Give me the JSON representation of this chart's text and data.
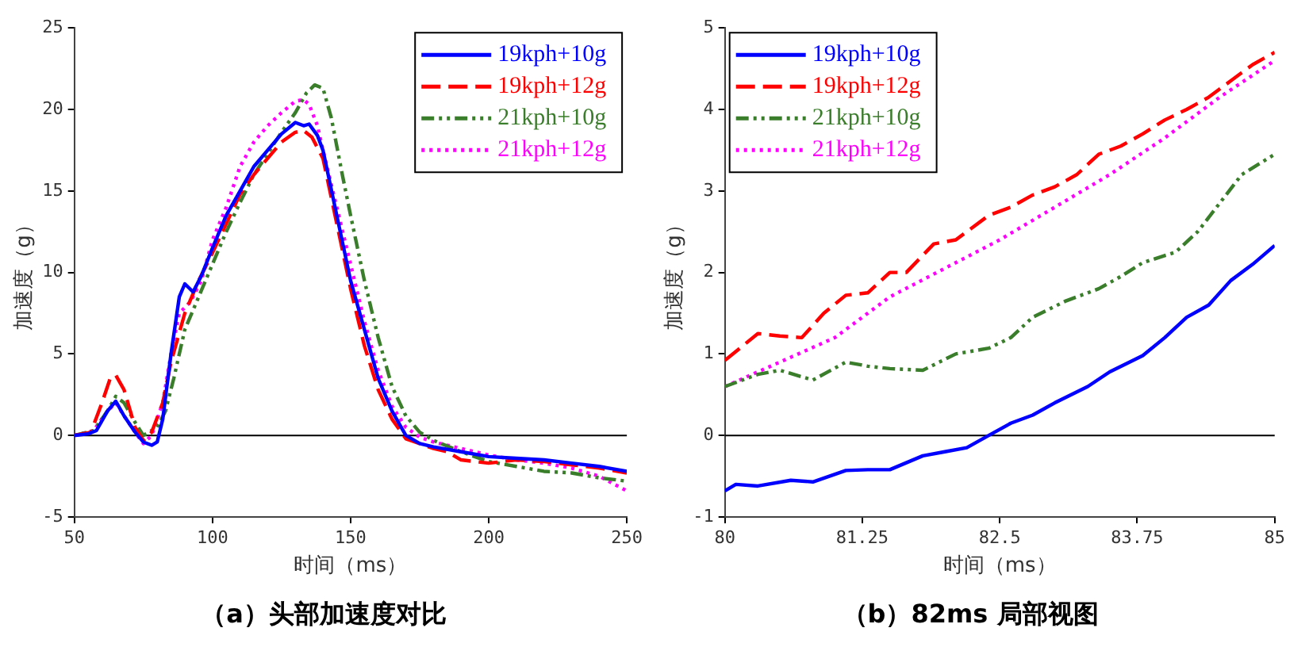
{
  "chart_data": [
    {
      "type": "line",
      "title": "（a）头部加速度对比",
      "xlabel": "时间（ms）",
      "ylabel": "加速度（g）",
      "xlim": [
        50,
        250
      ],
      "xticks": [
        50,
        100,
        150,
        200,
        250
      ],
      "ylim": [
        -5,
        25
      ],
      "yticks": [
        -5,
        0,
        5,
        10,
        15,
        20,
        25
      ],
      "grid": false,
      "legend": "top right",
      "marker": "none",
      "ref_lines": [
        {
          "axis": "y",
          "value": 0,
          "color": "#000000"
        }
      ],
      "series": [
        {
          "name": "19kph+10g",
          "color": "#0000ff",
          "line_style": "solid",
          "x": [
            50,
            55,
            58,
            62,
            65,
            68,
            72,
            75,
            78,
            80,
            82,
            85,
            88,
            90,
            93,
            96,
            100,
            105,
            110,
            115,
            120,
            125,
            130,
            133,
            135,
            138,
            140,
            145,
            150,
            155,
            160,
            165,
            170,
            175,
            180,
            190,
            200,
            210,
            220,
            230,
            240,
            250
          ],
          "values": [
            0,
            0.1,
            0.3,
            1.5,
            2.1,
            1.2,
            0.2,
            -0.4,
            -0.6,
            -0.4,
            1,
            5,
            8.5,
            9.3,
            8.8,
            9.8,
            11.5,
            13.5,
            15,
            16.5,
            17.5,
            18.5,
            19.2,
            19,
            19.1,
            18.4,
            17.5,
            13.5,
            9.5,
            6.5,
            3.5,
            1.5,
            0,
            -0.5,
            -0.7,
            -1,
            -1.3,
            -1.4,
            -1.5,
            -1.7,
            -1.9,
            -2.2
          ]
        },
        {
          "name": "19kph+12g",
          "color": "#ff0000",
          "line_style": "dashed",
          "x": [
            50,
            56,
            60,
            63,
            65,
            68,
            72,
            75,
            78,
            82,
            85,
            90,
            95,
            100,
            105,
            110,
            115,
            120,
            125,
            130,
            133,
            136,
            140,
            145,
            150,
            155,
            160,
            165,
            170,
            175,
            180,
            185,
            190,
            200,
            210,
            220,
            230,
            240,
            250
          ],
          "values": [
            0,
            0.2,
            2,
            3.5,
            3.7,
            2.8,
            0.5,
            -0.3,
            0.2,
            2,
            4.5,
            7.5,
            9.5,
            11.2,
            13,
            14.8,
            16,
            17,
            18,
            18.6,
            18.7,
            18.3,
            17,
            13,
            9,
            5.5,
            2.8,
            1,
            -0.2,
            -0.5,
            -0.8,
            -1,
            -1.5,
            -1.7,
            -1.5,
            -1.6,
            -1.8,
            -2,
            -2.3
          ]
        },
        {
          "name": "21kph+10g",
          "color": "#3a7d2a",
          "line_style": "dashdot",
          "x": [
            50,
            57,
            62,
            65,
            68,
            72,
            75,
            80,
            83,
            86,
            90,
            95,
            100,
            105,
            110,
            115,
            120,
            125,
            130,
            134,
            137,
            140,
            143,
            147,
            150,
            155,
            160,
            165,
            170,
            175,
            180,
            190,
            200,
            210,
            220,
            230,
            240,
            250
          ],
          "values": [
            0,
            0.3,
            1.5,
            2.4,
            2,
            0.8,
            0,
            0.5,
            1.5,
            3.5,
            6.5,
            8.5,
            10.5,
            12.5,
            14.3,
            16,
            17.3,
            18.6,
            19.8,
            21,
            21.5,
            21.3,
            19.5,
            16,
            13.5,
            9.5,
            6,
            3,
            1.2,
            0.2,
            -0.3,
            -1,
            -1.6,
            -1.9,
            -2.2,
            -2.3,
            -2.6,
            -2.8
          ]
        },
        {
          "name": "21kph+12g",
          "color": "#ff00ff",
          "line_style": "dotted",
          "x": [
            50,
            57,
            62,
            65,
            68,
            72,
            75,
            78,
            82,
            85,
            88,
            92,
            96,
            100,
            105,
            110,
            115,
            120,
            125,
            130,
            133,
            135,
            138,
            140,
            145,
            150,
            155,
            160,
            165,
            170,
            175,
            180,
            190,
            200,
            210,
            220,
            230,
            240,
            250
          ],
          "values": [
            0,
            0.3,
            1.5,
            2,
            1.2,
            0.2,
            -0.5,
            0,
            2,
            5,
            7.5,
            8.2,
            9.5,
            12,
            14,
            16.5,
            18,
            19,
            19.8,
            20.5,
            20.6,
            20.3,
            19,
            17.5,
            14,
            10.5,
            7,
            4,
            1.8,
            0.5,
            -0.1,
            -0.4,
            -0.8,
            -1.2,
            -1.5,
            -1.7,
            -2,
            -2.5,
            -3.4
          ]
        }
      ]
    },
    {
      "type": "line",
      "title": "（b）82ms 局部视图",
      "xlabel": "时间（ms）",
      "ylabel": "加速度（g）",
      "xlim": [
        80,
        85
      ],
      "xticks": [
        80,
        81.25,
        82.5,
        83.75,
        85
      ],
      "ylim": [
        -1,
        5
      ],
      "yticks": [
        -1,
        0,
        1,
        2,
        3,
        4,
        5
      ],
      "grid": false,
      "legend": "top left",
      "marker": "none",
      "ref_lines": [
        {
          "axis": "y",
          "value": 0,
          "color": "#000000"
        }
      ],
      "series": [
        {
          "name": "19kph+10g",
          "color": "#0000ff",
          "line_style": "solid",
          "x": [
            80,
            80.1,
            80.3,
            80.6,
            80.8,
            81.1,
            81.3,
            81.5,
            81.8,
            82,
            82.2,
            82.4,
            82.6,
            82.8,
            83,
            83.3,
            83.5,
            83.8,
            84,
            84.2,
            84.4,
            84.6,
            84.8,
            85
          ],
          "values": [
            -0.68,
            -0.6,
            -0.62,
            -0.55,
            -0.57,
            -0.43,
            -0.42,
            -0.42,
            -0.25,
            -0.2,
            -0.15,
            0,
            0.15,
            0.25,
            0.4,
            0.6,
            0.78,
            0.98,
            1.2,
            1.45,
            1.6,
            1.9,
            2.1,
            2.33
          ]
        },
        {
          "name": "19kph+12g",
          "color": "#ff0000",
          "line_style": "dashed",
          "x": [
            80,
            80.3,
            80.5,
            80.7,
            80.9,
            81.1,
            81.3,
            81.5,
            81.65,
            81.9,
            82.1,
            82.4,
            82.6,
            82.8,
            83,
            83.2,
            83.4,
            83.6,
            83.8,
            84,
            84.2,
            84.4,
            84.6,
            84.8,
            85
          ],
          "values": [
            0.92,
            1.25,
            1.22,
            1.2,
            1.5,
            1.72,
            1.75,
            2,
            2,
            2.35,
            2.4,
            2.7,
            2.8,
            2.95,
            3.05,
            3.2,
            3.45,
            3.55,
            3.7,
            3.87,
            4,
            4.15,
            4.35,
            4.55,
            4.7
          ]
        },
        {
          "name": "21kph+10g",
          "color": "#3a7d2a",
          "line_style": "dashdot",
          "x": [
            80,
            80.3,
            80.5,
            80.8,
            81.1,
            81.3,
            81.5,
            81.8,
            82.1,
            82.4,
            82.6,
            82.8,
            83.1,
            83.4,
            83.6,
            83.8,
            84.1,
            84.3,
            84.5,
            84.7,
            85
          ],
          "values": [
            0.6,
            0.75,
            0.8,
            0.68,
            0.9,
            0.85,
            0.82,
            0.8,
            1,
            1.07,
            1.2,
            1.45,
            1.65,
            1.8,
            1.95,
            2.12,
            2.25,
            2.5,
            2.85,
            3.2,
            3.45
          ]
        },
        {
          "name": "21kph+12g",
          "color": "#ff00ff",
          "line_style": "dotted",
          "x": [
            80,
            80.5,
            81,
            81.5,
            82,
            82.5,
            83,
            83.5,
            84,
            84.5,
            85
          ],
          "values": [
            0.6,
            0.9,
            1.2,
            1.7,
            2.05,
            2.4,
            2.8,
            3.2,
            3.65,
            4.15,
            4.6
          ]
        }
      ]
    }
  ]
}
